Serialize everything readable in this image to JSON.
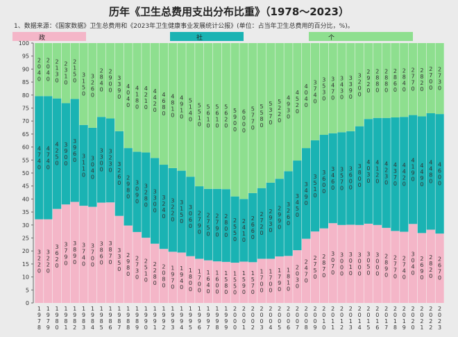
{
  "chart_data": {
    "type": "bar",
    "stacked": true,
    "title": "历年《卫生总费用支出分布比重》（1978～2023）",
    "subtitle": "1、数据来源：《国家数据》卫生总费用和《2023年卫生健康事业发展统计公报》(单位：占当年卫生总费用的百分比，%)。",
    "categories": [
      "1978",
      "1979",
      "1980",
      "1981",
      "1982",
      "1983",
      "1984",
      "1985",
      "1986",
      "1987",
      "1988",
      "1989",
      "1990",
      "1991",
      "1992",
      "1993",
      "1994",
      "1995",
      "1996",
      "1997",
      "1998",
      "1999",
      "2000",
      "2001",
      "2002",
      "2003",
      "2004",
      "2005",
      "2006",
      "2007",
      "2008",
      "2009",
      "2010",
      "2011",
      "2012",
      "2013",
      "2014",
      "2015",
      "2016",
      "2017",
      "2018",
      "2019",
      "2020",
      "2021",
      "2022",
      "2023"
    ],
    "series": [
      {
        "name": "政府支出",
        "color": "#f4b6c8",
        "values": [
          32.2,
          32.2,
          36.2,
          37.9,
          38.9,
          37.4,
          37.0,
          38.6,
          38.7,
          33.5,
          29.8,
          27.3,
          25.1,
          22.8,
          20.8,
          19.7,
          19.4,
          18.0,
          17.0,
          16.4,
          16.0,
          15.8,
          15.5,
          15.9,
          15.7,
          17.0,
          17.0,
          17.9,
          18.1,
          20.3,
          24.7,
          27.5,
          28.7,
          30.7,
          30.0,
          30.1,
          30.0,
          30.5,
          30.0,
          28.9,
          27.7,
          27.4,
          30.4,
          26.9,
          28.2,
          26.7
        ]
      },
      {
        "name": "社会支出",
        "color": "#1ab3b3",
        "values": [
          47.4,
          47.4,
          42.5,
          39.0,
          39.6,
          31.1,
          30.4,
          33.0,
          32.3,
          32.6,
          29.8,
          30.9,
          32.8,
          33.0,
          32.4,
          32.2,
          31.5,
          30.6,
          27.9,
          27.5,
          27.9,
          28.0,
          25.5,
          24.1,
          26.6,
          27.2,
          29.3,
          29.9,
          32.6,
          34.5,
          34.9,
          35.1,
          36.0,
          34.6,
          35.7,
          36.0,
          38.0,
          40.3,
          41.2,
          42.3,
          43.7,
          44.2,
          41.9,
          44.9,
          44.8,
          46.0
        ]
      },
      {
        "name": "个人现金支出",
        "color": "#8edf8f",
        "values": [
          20.4,
          20.4,
          21.3,
          23.1,
          21.5,
          31.5,
          32.6,
          28.4,
          29.0,
          33.9,
          40.4,
          41.8,
          42.1,
          44.2,
          46.8,
          48.1,
          49.1,
          51.4,
          55.1,
          56.1,
          56.1,
          56.2,
          59.0,
          60.0,
          57.7,
          55.8,
          53.7,
          52.2,
          49.3,
          45.2,
          40.4,
          37.4,
          35.3,
          34.7,
          34.3,
          33.9,
          32.0,
          29.2,
          28.8,
          28.8,
          28.6,
          28.4,
          27.7,
          28.2,
          27.0,
          27.3
        ]
      }
    ],
    "ylim": [
      0,
      100
    ],
    "yticks": [
      0,
      5,
      10,
      15,
      20,
      25,
      30,
      35,
      40,
      45,
      50,
      55,
      60,
      65,
      70,
      75,
      80,
      85,
      90,
      95,
      100
    ],
    "legend_position": "top",
    "grid": false,
    "data_label_digits": 2
  }
}
